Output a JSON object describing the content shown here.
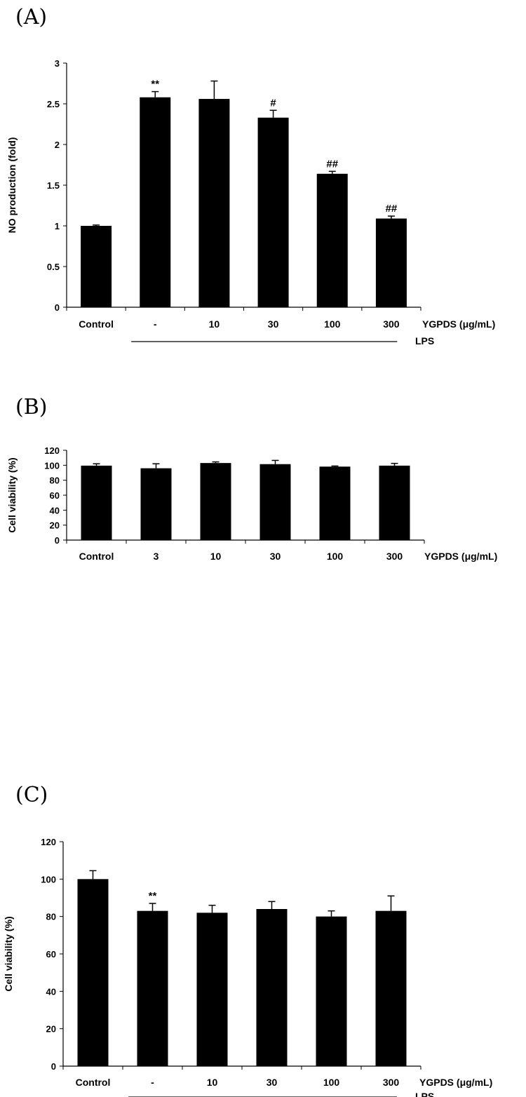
{
  "chart_data": [
    {
      "panel": "(A)",
      "type": "bar",
      "ylabel": "NO production (fold)",
      "xlabel": "YGPDS (μg/mL)",
      "group_label": "LPS",
      "categories": [
        "Control",
        "-",
        "10",
        "30",
        "100",
        "300"
      ],
      "values": [
        1.0,
        2.58,
        2.56,
        2.33,
        1.64,
        1.09
      ],
      "errors": [
        0.01,
        0.07,
        0.22,
        0.09,
        0.03,
        0.03
      ],
      "annotations": [
        "",
        "**",
        "",
        "#",
        "##",
        "##"
      ],
      "yticks": [
        "0",
        "0.5",
        "1",
        "1.5",
        "2",
        "2.5",
        "3"
      ],
      "ylim": [
        0,
        3
      ],
      "lps_from": 1,
      "lps_to": 5
    },
    {
      "panel": "(B)",
      "type": "bar",
      "ylabel": "Cell viability (%)",
      "xlabel": "YGPDS (μg/mL)",
      "group_label": "",
      "categories": [
        "Control",
        "3",
        "10",
        "30",
        "100",
        "300"
      ],
      "values": [
        99.5,
        96,
        103,
        101.5,
        98.2,
        99.5
      ],
      "errors": [
        2.5,
        6,
        1.5,
        5,
        0.8,
        3
      ],
      "annotations": [
        "",
        "",
        "",
        "",
        "",
        ""
      ],
      "yticks": [
        "0",
        "20",
        "40",
        "60",
        "80",
        "100",
        "120"
      ],
      "ylim": [
        0,
        120
      ],
      "lps_from": null,
      "lps_to": null
    },
    {
      "panel": "(C)",
      "type": "bar",
      "ylabel": "Cell viability (%)",
      "xlabel": "YGPDS (μg/mL)",
      "group_label": "LPS",
      "categories": [
        "Control",
        "-",
        "10",
        "30",
        "100",
        "300"
      ],
      "values": [
        100,
        83,
        82,
        84,
        80,
        83
      ],
      "errors": [
        4.5,
        4,
        4,
        4,
        3,
        8
      ],
      "annotations": [
        "",
        "**",
        "",
        "",
        "",
        ""
      ],
      "yticks": [
        "0",
        "20",
        "40",
        "60",
        "80",
        "100",
        "120"
      ],
      "ylim": [
        0,
        120
      ],
      "lps_from": 1,
      "lps_to": 5
    }
  ]
}
